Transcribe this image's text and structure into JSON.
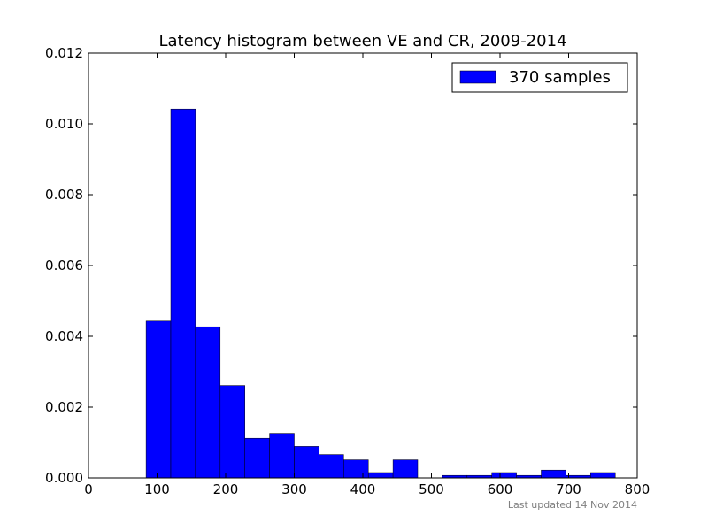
{
  "chart_data": {
    "type": "bar",
    "title": "Latency histogram between VE and CR, 2009-2014",
    "xlabel": "",
    "ylabel": "",
    "xlim": [
      0,
      800
    ],
    "ylim": [
      0,
      0.012
    ],
    "x_ticks": [
      "0",
      "100",
      "200",
      "300",
      "400",
      "500",
      "600",
      "700",
      "800"
    ],
    "y_ticks": [
      "0.000",
      "0.002",
      "0.004",
      "0.006",
      "0.008",
      "0.010",
      "0.012"
    ],
    "grid": false,
    "legend_position": "top-right",
    "bar_color": "#0000ff",
    "series": [
      {
        "name": "370 samples",
        "bins": [
          {
            "x0": 84,
            "x1": 120,
            "value": 0.00443
          },
          {
            "x0": 120,
            "x1": 156,
            "value": 0.01042
          },
          {
            "x0": 156,
            "x1": 192,
            "value": 0.00427
          },
          {
            "x0": 192,
            "x1": 228,
            "value": 0.00261
          },
          {
            "x0": 228,
            "x1": 264,
            "value": 0.00112
          },
          {
            "x0": 264,
            "x1": 300,
            "value": 0.00126
          },
          {
            "x0": 300,
            "x1": 336,
            "value": 0.00089
          },
          {
            "x0": 336,
            "x1": 372,
            "value": 0.00066
          },
          {
            "x0": 372,
            "x1": 408,
            "value": 0.00051
          },
          {
            "x0": 408,
            "x1": 444,
            "value": 0.00015
          },
          {
            "x0": 444,
            "x1": 480,
            "value": 0.00051
          },
          {
            "x0": 516,
            "x1": 552,
            "value": 7e-05
          },
          {
            "x0": 552,
            "x1": 588,
            "value": 7e-05
          },
          {
            "x0": 588,
            "x1": 624,
            "value": 0.00015
          },
          {
            "x0": 624,
            "x1": 660,
            "value": 7e-05
          },
          {
            "x0": 660,
            "x1": 696,
            "value": 0.00022
          },
          {
            "x0": 696,
            "x1": 732,
            "value": 7e-05
          },
          {
            "x0": 732,
            "x1": 768,
            "value": 0.00015
          }
        ]
      }
    ]
  },
  "footer": {
    "updated_text": "Last updated 14 Nov 2014"
  }
}
